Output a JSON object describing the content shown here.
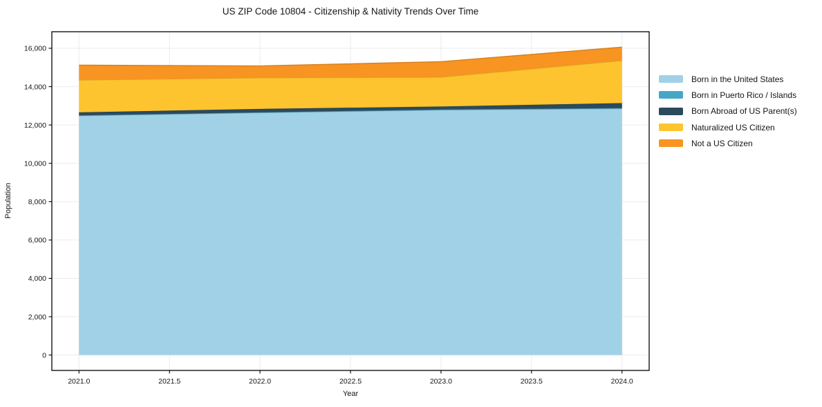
{
  "title": "US ZIP Code 10804 - Citizenship & Nativity Trends Over Time",
  "colors": {
    "grid": "#ebebeb",
    "axis": "#000000",
    "text": "#141414",
    "plot_background": "#ffffff"
  },
  "chart_data": {
    "type": "area",
    "stacked": true,
    "title": "US ZIP Code 10804 - Citizenship & Nativity Trends Over Time",
    "xlabel": "Year",
    "ylabel": "Population",
    "grid": true,
    "legend_position": "right-outside",
    "x": [
      2021,
      2022,
      2023,
      2024
    ],
    "series": [
      {
        "name": "Born in the United States",
        "color": "#a0d1e7",
        "values": [
          12480,
          12640,
          12780,
          12850
        ]
      },
      {
        "name": "Born in Puerto Rico / Islands",
        "color": "#45a7c6",
        "values": [
          20,
          20,
          25,
          30
        ]
      },
      {
        "name": "Born Abroad of US Parent(s)",
        "color": "#2c4a5c",
        "values": [
          160,
          180,
          160,
          260
        ]
      },
      {
        "name": "Naturalized US Citizen",
        "color": "#fdc42f",
        "values": [
          1680,
          1620,
          1525,
          2220
        ]
      },
      {
        "name": "Not a US Citizen",
        "color": "#f79422",
        "values": [
          780,
          620,
          810,
          700
        ]
      }
    ],
    "totals": [
      15120,
      15080,
      15300,
      16060
    ],
    "x_ticks": [
      2021.0,
      2021.5,
      2022.0,
      2022.5,
      2023.0,
      2023.5,
      2024.0
    ],
    "x_tick_labels": [
      "2021.0",
      "2021.5",
      "2022.0",
      "2022.5",
      "2023.0",
      "2023.5",
      "2024.0"
    ],
    "y_ticks": [
      0,
      2000,
      4000,
      6000,
      8000,
      10000,
      12000,
      14000,
      16000
    ],
    "y_tick_labels": [
      "0",
      "2,000",
      "4,000",
      "6,000",
      "8,000",
      "10,000",
      "12,000",
      "14,000",
      "16,000"
    ],
    "xlim": [
      2020.85,
      2024.15
    ],
    "ylim": [
      -803,
      16863
    ]
  }
}
